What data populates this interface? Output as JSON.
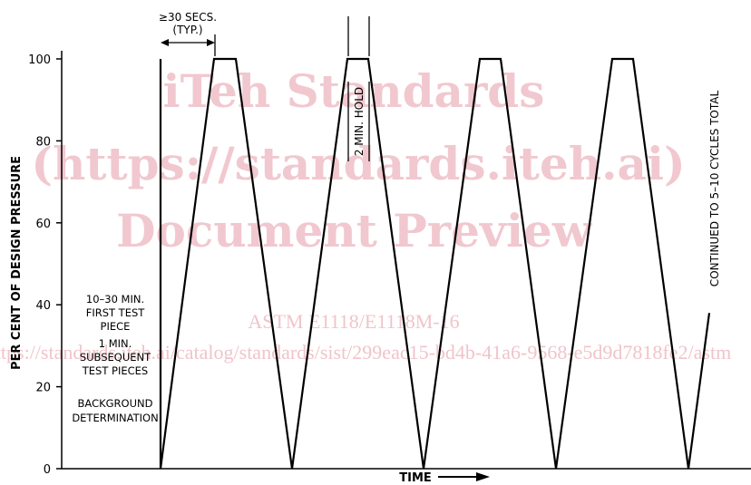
{
  "watermark": {
    "line1": "iTeh Standards",
    "line2": "(https://standards.iteh.ai)",
    "line3": "Document Preview",
    "line4": "ASTM E1118/E1118M-16",
    "line5": "https://standards.iteh.ai/catalog/standards/sist/299eac15-bd4b-41a6-9568-e5d9d7818fe2/astm"
  },
  "annotations": {
    "secs_top": "≥30 SECS.",
    "secs_bottom": "(TYP.)",
    "hold": "2 MIN. HOLD",
    "continued": "CONTINUED TO 5–10 CYCLES TOTAL",
    "left_note": [
      "10–30 MIN.",
      "FIRST TEST",
      "PIECE",
      "1 MIN.",
      "SUBSEQUENT",
      "TEST PIECES"
    ],
    "background": [
      "BACKGROUND",
      "DETERMINATION"
    ]
  },
  "chart_data": {
    "type": "line",
    "title": "",
    "xlabel": "TIME",
    "ylabel": "PER CENT OF DESIGN PRESSURE",
    "ylim": [
      0,
      100
    ],
    "yticks": [
      0,
      20,
      40,
      60,
      80,
      100
    ],
    "ytick_labels": [
      "0",
      "20",
      "40",
      "60",
      "80",
      "100"
    ],
    "grid": false,
    "legend": "none",
    "series": [
      {
        "values": [
          0,
          100,
          100,
          0,
          100,
          100,
          0,
          100,
          100,
          0,
          100,
          100,
          0,
          38
        ]
      }
    ]
  }
}
